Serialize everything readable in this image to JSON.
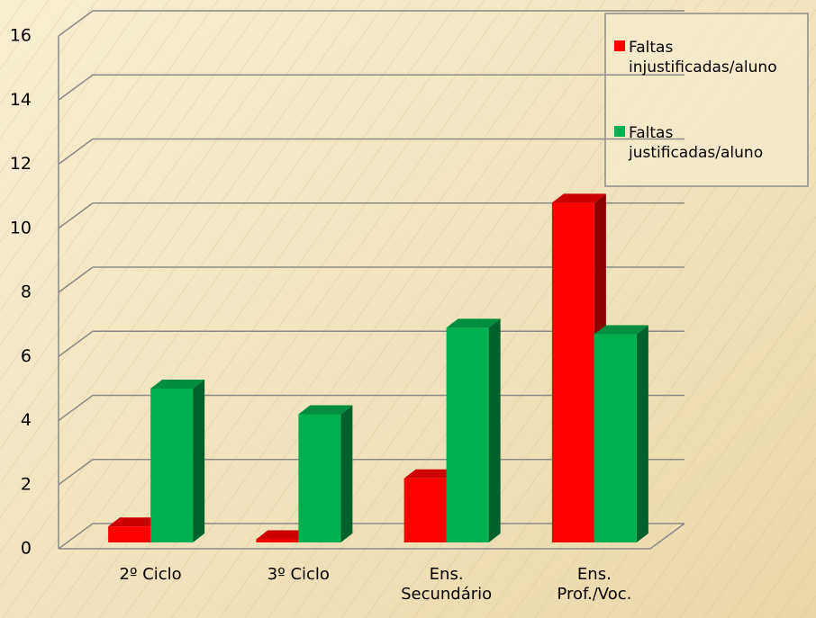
{
  "chart_data": {
    "type": "bar3d",
    "categories": [
      "2º Ciclo",
      "3º Ciclo",
      "Ens. Secundário",
      "Ens. Prof./Voc."
    ],
    "series": [
      {
        "name": "Faltas injustificadas/aluno",
        "color": "#ff0000",
        "values": [
          0.5,
          0.1,
          2.0,
          10.6
        ]
      },
      {
        "name": "Faltas justificadas/aluno",
        "color": "#00b050",
        "values": [
          4.8,
          4.0,
          6.7,
          6.5
        ]
      }
    ],
    "ylim": [
      0,
      16
    ],
    "yticks": [
      0,
      2,
      4,
      6,
      8,
      10,
      12,
      14,
      16
    ],
    "grid": true,
    "legend": "top-right"
  }
}
